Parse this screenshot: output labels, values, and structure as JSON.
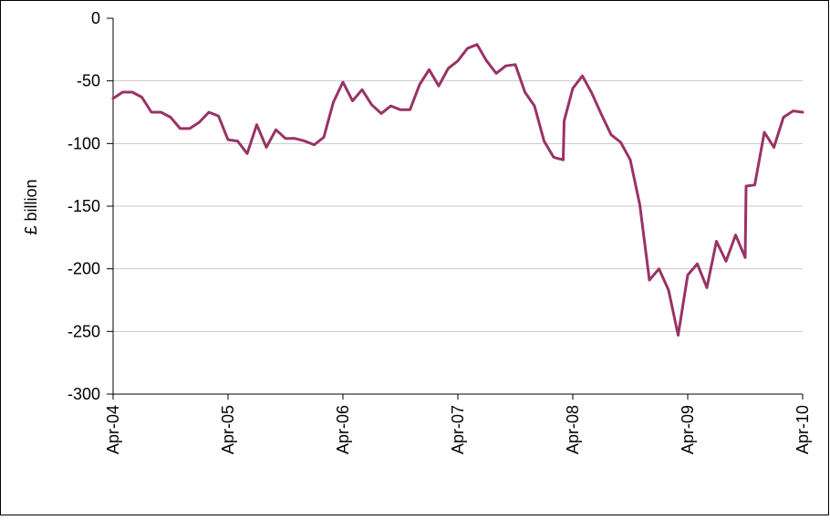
{
  "chart_data": {
    "type": "line",
    "title": "",
    "xlabel": "",
    "ylabel": "£ billion",
    "ylim": [
      -300,
      0
    ],
    "yticks": [
      0,
      -50,
      -100,
      -150,
      -200,
      -250,
      -300
    ],
    "x_tick_labels": [
      "Apr-04",
      "Apr-05",
      "Apr-06",
      "Apr-07",
      "Apr-08",
      "Apr-09",
      "Apr-10"
    ],
    "x_range_months": [
      0,
      72
    ],
    "grid": "horizontal",
    "legend": "none",
    "line_color": "#993366",
    "series": [
      {
        "x": [
          0,
          1,
          2,
          3,
          4,
          5,
          6,
          7,
          8,
          9,
          10,
          11,
          12,
          13,
          14,
          15,
          16,
          17,
          18,
          19,
          20,
          21,
          22,
          23,
          24,
          25,
          26,
          27,
          28,
          29,
          30,
          31,
          32,
          33,
          34,
          35,
          36,
          37,
          38,
          39,
          40,
          41,
          42,
          43,
          44,
          45,
          46,
          47,
          47.1,
          48,
          49,
          50,
          51,
          52,
          53,
          54,
          55,
          56,
          57,
          58,
          59,
          60,
          61,
          62,
          63,
          64,
          65,
          66,
          66.1,
          67,
          68,
          69,
          70,
          71,
          72
        ],
        "y": [
          -64,
          -59,
          -59,
          -63,
          -75,
          -75,
          -79,
          -88,
          -88,
          -83,
          -75,
          -78,
          -97,
          -98,
          -108,
          -85,
          -103,
          -89,
          -96,
          -96,
          -98,
          -101,
          -95,
          -67,
          -51,
          -66,
          -57,
          -69,
          -76,
          -70,
          -73,
          -73,
          -53,
          -41,
          -54,
          -40,
          -34,
          -24,
          -21,
          -34,
          -44,
          -38,
          -37,
          -59,
          -70,
          -98,
          -111,
          -113,
          -82,
          -56,
          -46,
          -60,
          -77,
          -93,
          -99,
          -113,
          -149,
          -209,
          -200,
          -217,
          -253,
          -205,
          -196,
          -215,
          -178,
          -194,
          -173,
          -191,
          -134,
          -133,
          -91,
          -103,
          -79,
          -74,
          -75
        ]
      }
    ]
  }
}
